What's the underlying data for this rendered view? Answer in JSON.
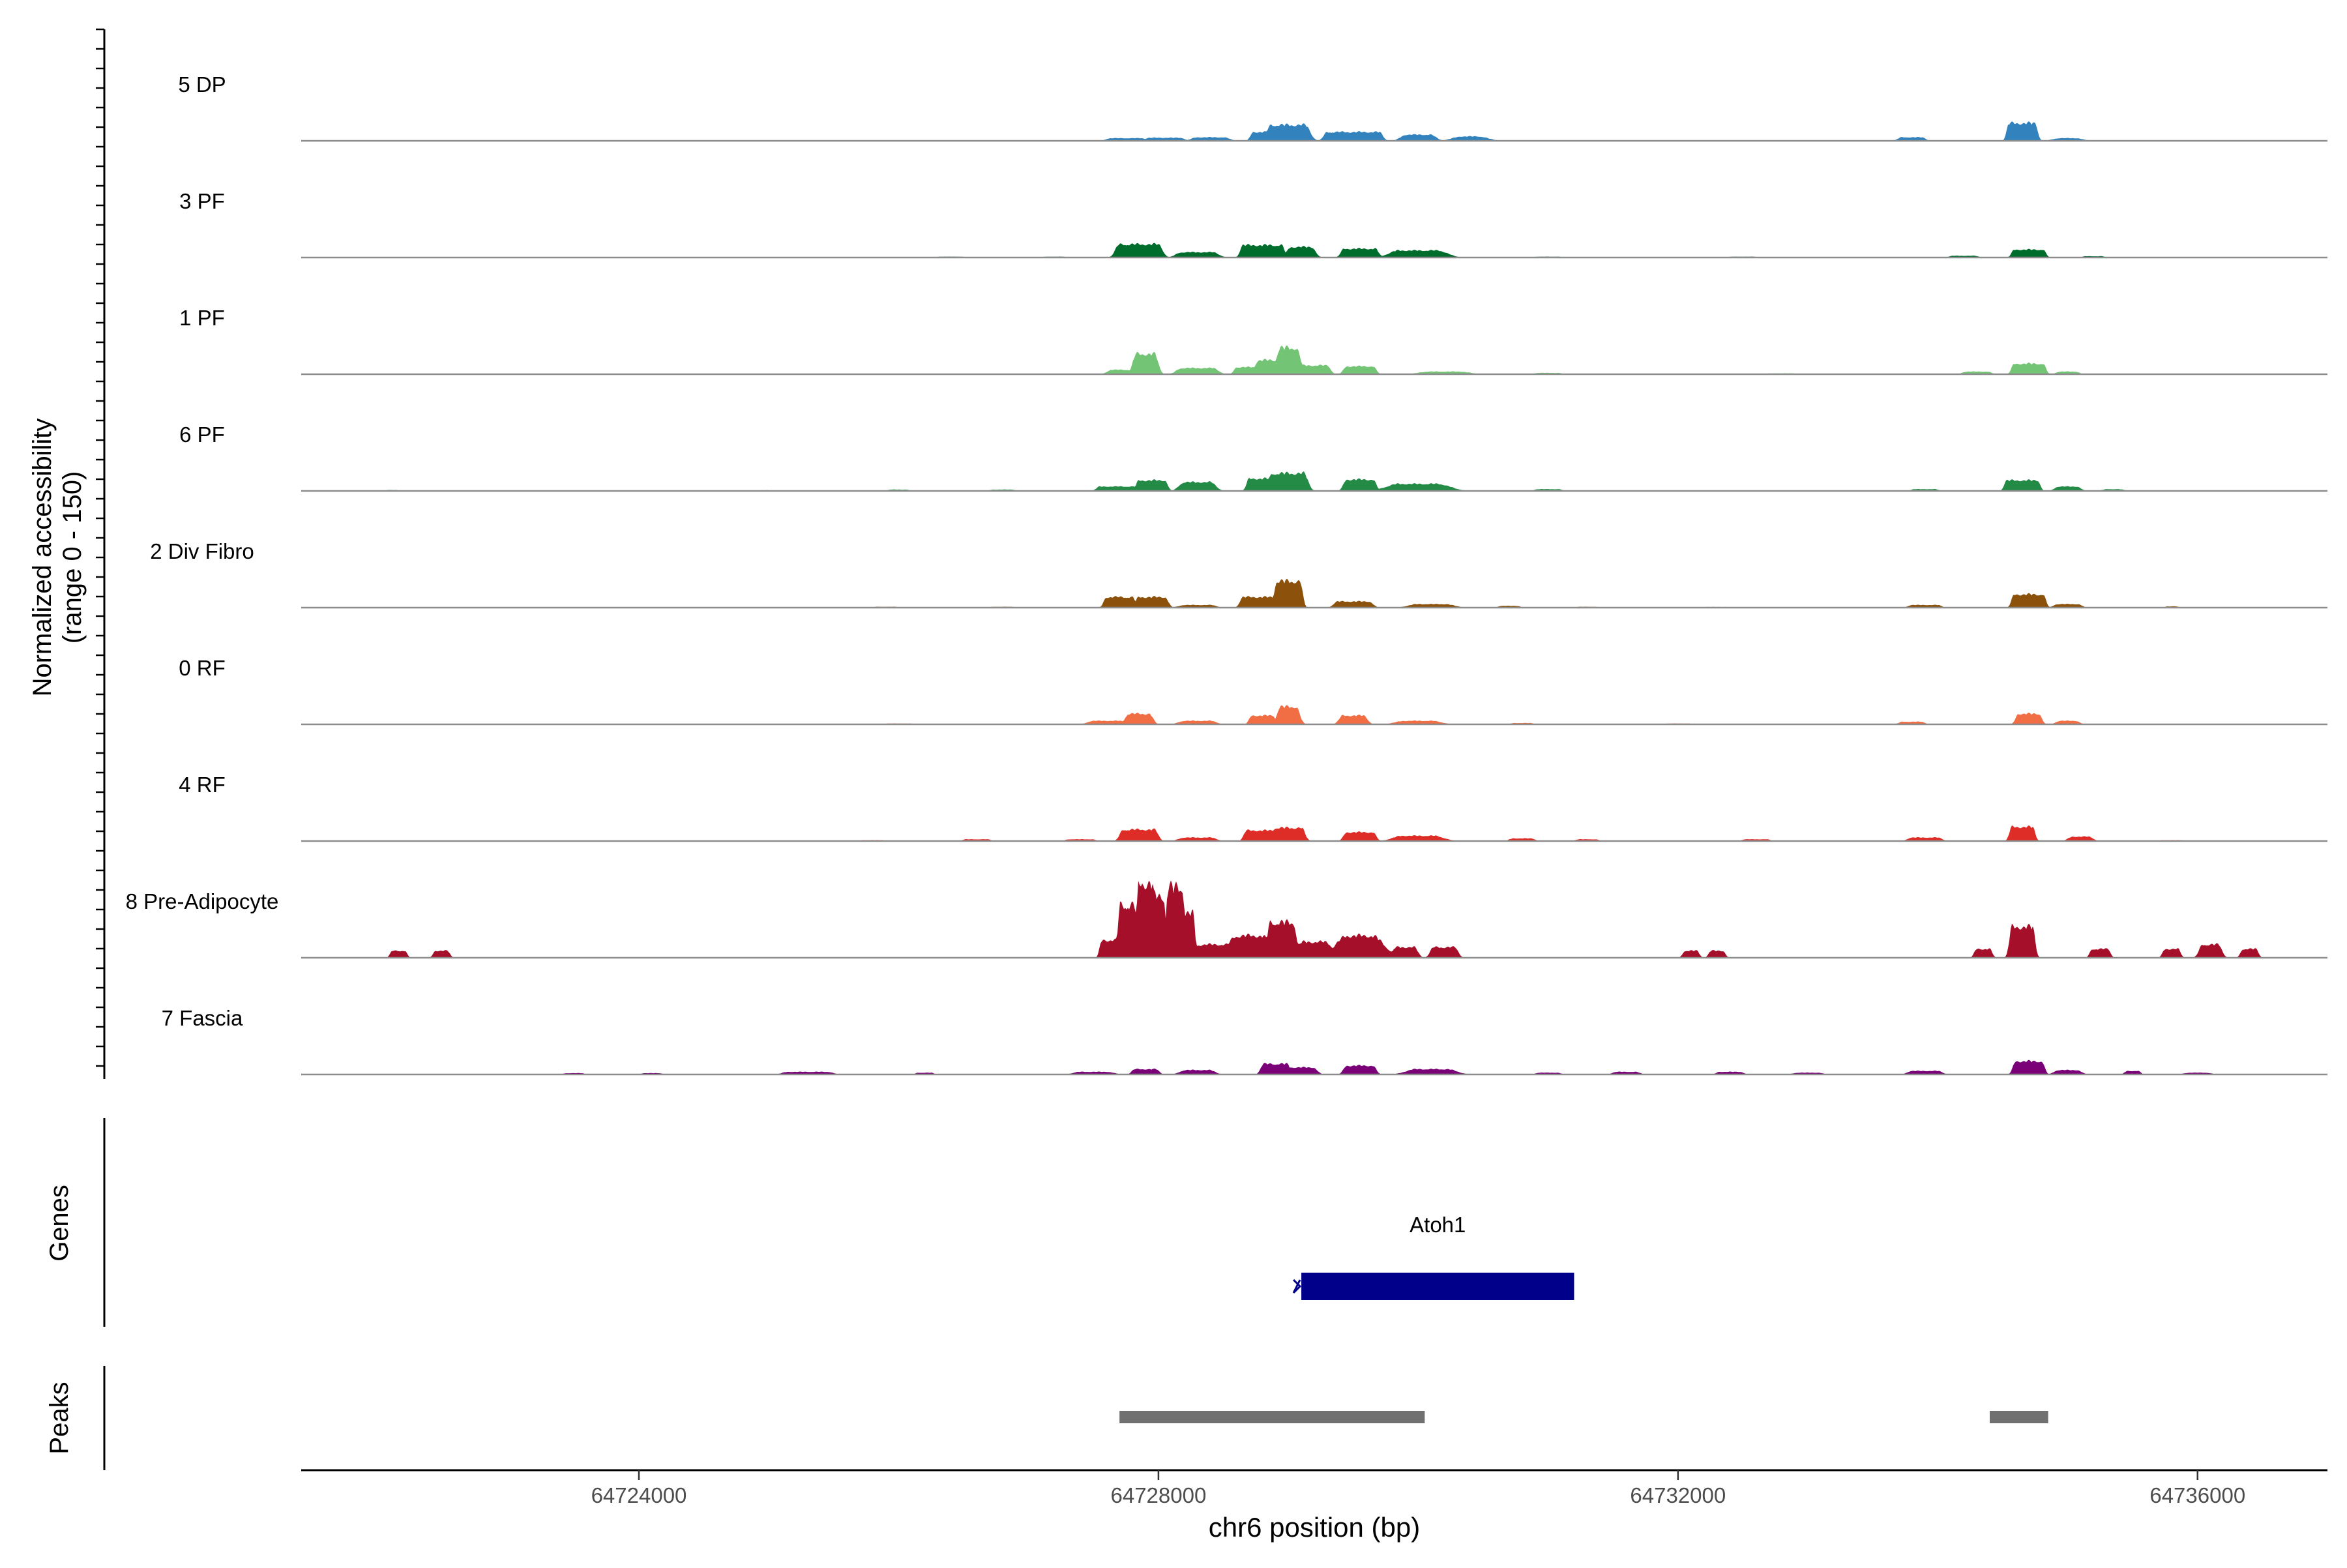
{
  "chart_data": {
    "type": "area",
    "xlabel": "chr6 position (bp)",
    "ylabel_lines": [
      "Normalized accessibility",
      "(range 0 - 150)"
    ],
    "xlim": [
      64721400,
      64737000
    ],
    "ylim": [
      0,
      150
    ],
    "x_ticks": [
      64724000,
      64728000,
      64732000,
      64736000
    ],
    "x_tick_labels": [
      "64724000",
      "64728000",
      "64732000",
      "64736000"
    ],
    "panel_labels": {
      "genes": "Genes",
      "peaks": "Peaks"
    },
    "series": [
      {
        "name": "5 DP",
        "color": "#3182bd",
        "bumps": [
          [
            64722100,
            0.004,
            30,
            0.004
          ],
          [
            64722400,
            0.003,
            40,
            0.006
          ],
          [
            64725000,
            0.004,
            60,
            0.005
          ],
          [
            64727100,
            0.005,
            80,
            0.005
          ],
          [
            64727750,
            0.018,
            120,
            0.03
          ],
          [
            64728050,
            0.016,
            120,
            0.035
          ],
          [
            64728400,
            0.03,
            100,
            0.04
          ],
          [
            64728800,
            0.006,
            70,
            0.1
          ],
          [
            64729000,
            0.022,
            130,
            0.18
          ],
          [
            64729500,
            0.012,
            200,
            0.1
          ],
          [
            64730000,
            0.03,
            90,
            0.07
          ],
          [
            64730400,
            0.06,
            60,
            0.05
          ],
          [
            64731300,
            0.006,
            60,
            0.003
          ],
          [
            64732000,
            0.002,
            40,
            0.004
          ],
          [
            64733800,
            0.012,
            80,
            0.04
          ],
          [
            64734650,
            0.004,
            100,
            0.2
          ],
          [
            64735000,
            0.04,
            60,
            0.03
          ],
          [
            64735800,
            0.05,
            40,
            0.006
          ]
        ]
      },
      {
        "name": "3 PF",
        "color": "#006d2c",
        "bumps": [
          [
            64724200,
            0.004,
            50,
            0.004
          ],
          [
            64726400,
            0.01,
            80,
            0.01
          ],
          [
            64727200,
            0.01,
            60,
            0.01
          ],
          [
            64727850,
            0.016,
            150,
            0.15
          ],
          [
            64728300,
            0.03,
            120,
            0.06
          ],
          [
            64728800,
            0.006,
            150,
            0.14
          ],
          [
            64729100,
            0.014,
            80,
            0.12
          ],
          [
            64729550,
            0.01,
            120,
            0.1
          ],
          [
            64730000,
            0.06,
            150,
            0.08
          ],
          [
            64731000,
            0.01,
            80,
            0.01
          ],
          [
            64732500,
            0.01,
            80,
            0.01
          ],
          [
            64734200,
            0.016,
            80,
            0.02
          ],
          [
            64734700,
            0.006,
            110,
            0.09
          ],
          [
            64735200,
            0.01,
            60,
            0.015
          ]
        ]
      },
      {
        "name": "1 PF",
        "color": "#74c476",
        "bumps": [
          [
            64727700,
            0.02,
            60,
            0.05
          ],
          [
            64727900,
            0.012,
            70,
            0.23
          ],
          [
            64728300,
            0.026,
            120,
            0.07
          ],
          [
            64728700,
            0.004,
            100,
            0.08
          ],
          [
            64728850,
            0.012,
            80,
            0.16
          ],
          [
            64729000,
            0.018,
            60,
            0.3
          ],
          [
            64729200,
            0.01,
            100,
            0.1
          ],
          [
            64729550,
            0.01,
            100,
            0.09
          ],
          [
            64730200,
            0.06,
            120,
            0.03
          ],
          [
            64731000,
            0.012,
            80,
            0.015
          ],
          [
            64732800,
            0.02,
            80,
            0.01
          ],
          [
            64734300,
            0.016,
            80,
            0.03
          ],
          [
            64734700,
            0.006,
            110,
            0.12
          ],
          [
            64735000,
            0.014,
            60,
            0.03
          ]
        ]
      },
      {
        "name": "6 PF",
        "color": "#238b45",
        "bumps": [
          [
            64722100,
            0.004,
            30,
            0.01
          ],
          [
            64725000,
            0.004,
            50,
            0.008
          ],
          [
            64726000,
            0.006,
            60,
            0.015
          ],
          [
            64726800,
            0.014,
            70,
            0.015
          ],
          [
            64727700,
            0.012,
            150,
            0.05
          ],
          [
            64727950,
            0.006,
            100,
            0.12
          ],
          [
            64728300,
            0.026,
            100,
            0.1
          ],
          [
            64728800,
            0.006,
            100,
            0.14
          ],
          [
            64729000,
            0.016,
            120,
            0.2
          ],
          [
            64729550,
            0.01,
            100,
            0.13
          ],
          [
            64730000,
            0.08,
            150,
            0.08
          ],
          [
            64731000,
            0.012,
            80,
            0.02
          ],
          [
            64733900,
            0.01,
            80,
            0.02
          ],
          [
            64734650,
            0.004,
            120,
            0.12
          ],
          [
            64735000,
            0.016,
            70,
            0.05
          ],
          [
            64735350,
            0.026,
            40,
            0.02
          ]
        ]
      },
      {
        "name": "2 Div Fibro",
        "color": "#8c510a",
        "bumps": [
          [
            64722300,
            0.004,
            40,
            0.006
          ],
          [
            64724900,
            0.006,
            50,
            0.006
          ],
          [
            64725900,
            0.006,
            70,
            0.01
          ],
          [
            64726800,
            0.012,
            70,
            0.01
          ],
          [
            64727700,
            0.006,
            100,
            0.12
          ],
          [
            64727950,
            0.01,
            100,
            0.12
          ],
          [
            64728300,
            0.03,
            100,
            0.03
          ],
          [
            64728800,
            0.008,
            150,
            0.12
          ],
          [
            64729000,
            0.004,
            90,
            0.3
          ],
          [
            64729500,
            0.016,
            120,
            0.07
          ],
          [
            64730100,
            0.06,
            100,
            0.04
          ],
          [
            64730700,
            0.01,
            60,
            0.02
          ],
          [
            64731300,
            0.006,
            60,
            0.01
          ],
          [
            64732300,
            0.01,
            80,
            0.008
          ],
          [
            64733900,
            0.014,
            100,
            0.03
          ],
          [
            64734700,
            0.006,
            110,
            0.15
          ],
          [
            64735000,
            0.014,
            80,
            0.04
          ],
          [
            64735800,
            0.004,
            30,
            0.015
          ]
        ]
      },
      {
        "name": "0 RF",
        "color": "#f16d44",
        "bumps": [
          [
            64723000,
            0.006,
            50,
            0.006
          ],
          [
            64724000,
            0.008,
            70,
            0.006
          ],
          [
            64726000,
            0.008,
            80,
            0.01
          ],
          [
            64727600,
            0.03,
            100,
            0.04
          ],
          [
            64727850,
            0.012,
            80,
            0.12
          ],
          [
            64728300,
            0.03,
            100,
            0.04
          ],
          [
            64728800,
            0.006,
            80,
            0.1
          ],
          [
            64729000,
            0.012,
            60,
            0.2
          ],
          [
            64729500,
            0.014,
            80,
            0.1
          ],
          [
            64730000,
            0.06,
            100,
            0.04
          ],
          [
            64730800,
            0.014,
            60,
            0.015
          ],
          [
            64732000,
            0.01,
            80,
            0.01
          ],
          [
            64733800,
            0.014,
            70,
            0.03
          ],
          [
            64734700,
            0.006,
            80,
            0.12
          ],
          [
            64735000,
            0.016,
            60,
            0.04
          ],
          [
            64735700,
            0.05,
            60,
            0.006
          ]
        ]
      },
      {
        "name": "4 RF",
        "color": "#de2d26",
        "bumps": [
          [
            64725800,
            0.012,
            70,
            0.01
          ],
          [
            64726600,
            0.014,
            80,
            0.02
          ],
          [
            64727400,
            0.01,
            90,
            0.02
          ],
          [
            64727850,
            0.012,
            120,
            0.13
          ],
          [
            64728300,
            0.03,
            100,
            0.04
          ],
          [
            64728800,
            0.008,
            120,
            0.12
          ],
          [
            64729000,
            0.012,
            100,
            0.15
          ],
          [
            64729550,
            0.01,
            100,
            0.1
          ],
          [
            64730000,
            0.06,
            120,
            0.06
          ],
          [
            64730800,
            0.014,
            70,
            0.03
          ],
          [
            64731300,
            0.016,
            60,
            0.02
          ],
          [
            64732600,
            0.014,
            80,
            0.02
          ],
          [
            64733900,
            0.018,
            100,
            0.04
          ],
          [
            64734650,
            0.004,
            80,
            0.16
          ],
          [
            64735100,
            0.02,
            60,
            0.05
          ],
          [
            64735800,
            0.05,
            40,
            0.01
          ]
        ]
      },
      {
        "name": "8 Pre-Adipocyte",
        "color": "#a50f2a",
        "bumps": [
          [
            64722150,
            0.004,
            45,
            0.08
          ],
          [
            64722480,
            0.004,
            45,
            0.08
          ],
          [
            64727620,
            0.002,
            55,
            0.2
          ],
          [
            64727760,
            0.002,
            55,
            0.6
          ],
          [
            64727900,
            0.002,
            50,
            0.85
          ],
          [
            64728000,
            0.002,
            40,
            0.7
          ],
          [
            64728130,
            0.002,
            55,
            0.8
          ],
          [
            64728220,
            0.002,
            45,
            0.5
          ],
          [
            64728450,
            0.1,
            100,
            0.15
          ],
          [
            64728700,
            0.06,
            90,
            0.25
          ],
          [
            64728950,
            0.008,
            90,
            0.4
          ],
          [
            64729200,
            0.05,
            80,
            0.18
          ],
          [
            64729550,
            0.08,
            90,
            0.25
          ],
          [
            64729900,
            0.012,
            70,
            0.12
          ],
          [
            64730200,
            0.012,
            80,
            0.12
          ],
          [
            64732100,
            0.004,
            45,
            0.08
          ],
          [
            64732300,
            0.004,
            45,
            0.08
          ],
          [
            64734350,
            0.004,
            50,
            0.1
          ],
          [
            64734650,
            0.004,
            80,
            0.35
          ],
          [
            64735250,
            0.004,
            60,
            0.1
          ],
          [
            64735800,
            0.004,
            50,
            0.1
          ],
          [
            64736100,
            0.012,
            60,
            0.15
          ],
          [
            64736400,
            0.004,
            50,
            0.1
          ]
        ]
      },
      {
        "name": "7 Fascia",
        "color": "#7a0177",
        "bumps": [
          [
            64723500,
            0.006,
            60,
            0.015
          ],
          [
            64724100,
            0.006,
            60,
            0.015
          ],
          [
            64725300,
            0.03,
            150,
            0.03
          ],
          [
            64726200,
            0.004,
            50,
            0.02
          ],
          [
            64727500,
            0.04,
            100,
            0.03
          ],
          [
            64727900,
            0.01,
            80,
            0.06
          ],
          [
            64728300,
            0.03,
            90,
            0.05
          ],
          [
            64728900,
            0.008,
            90,
            0.12
          ],
          [
            64729100,
            0.016,
            90,
            0.08
          ],
          [
            64729550,
            0.01,
            100,
            0.1
          ],
          [
            64730100,
            0.06,
            120,
            0.06
          ],
          [
            64731000,
            0.014,
            70,
            0.02
          ],
          [
            64731600,
            0.02,
            70,
            0.03
          ],
          [
            64732400,
            0.01,
            80,
            0.03
          ],
          [
            64733000,
            0.02,
            80,
            0.02
          ],
          [
            64733900,
            0.02,
            100,
            0.04
          ],
          [
            64734700,
            0.006,
            100,
            0.15
          ],
          [
            64735000,
            0.02,
            70,
            0.05
          ],
          [
            64735500,
            0.006,
            40,
            0.04
          ],
          [
            64736000,
            0.03,
            60,
            0.02
          ]
        ]
      }
    ],
    "genes": [
      {
        "name": "Atoh1",
        "start": 64729100,
        "end": 64731200,
        "strand": "-",
        "color": "#00008b"
      }
    ],
    "peaks": [
      {
        "start": 64727700,
        "end": 64730050
      },
      {
        "start": 64734400,
        "end": 64734850
      }
    ],
    "peak_color": "#707070"
  }
}
